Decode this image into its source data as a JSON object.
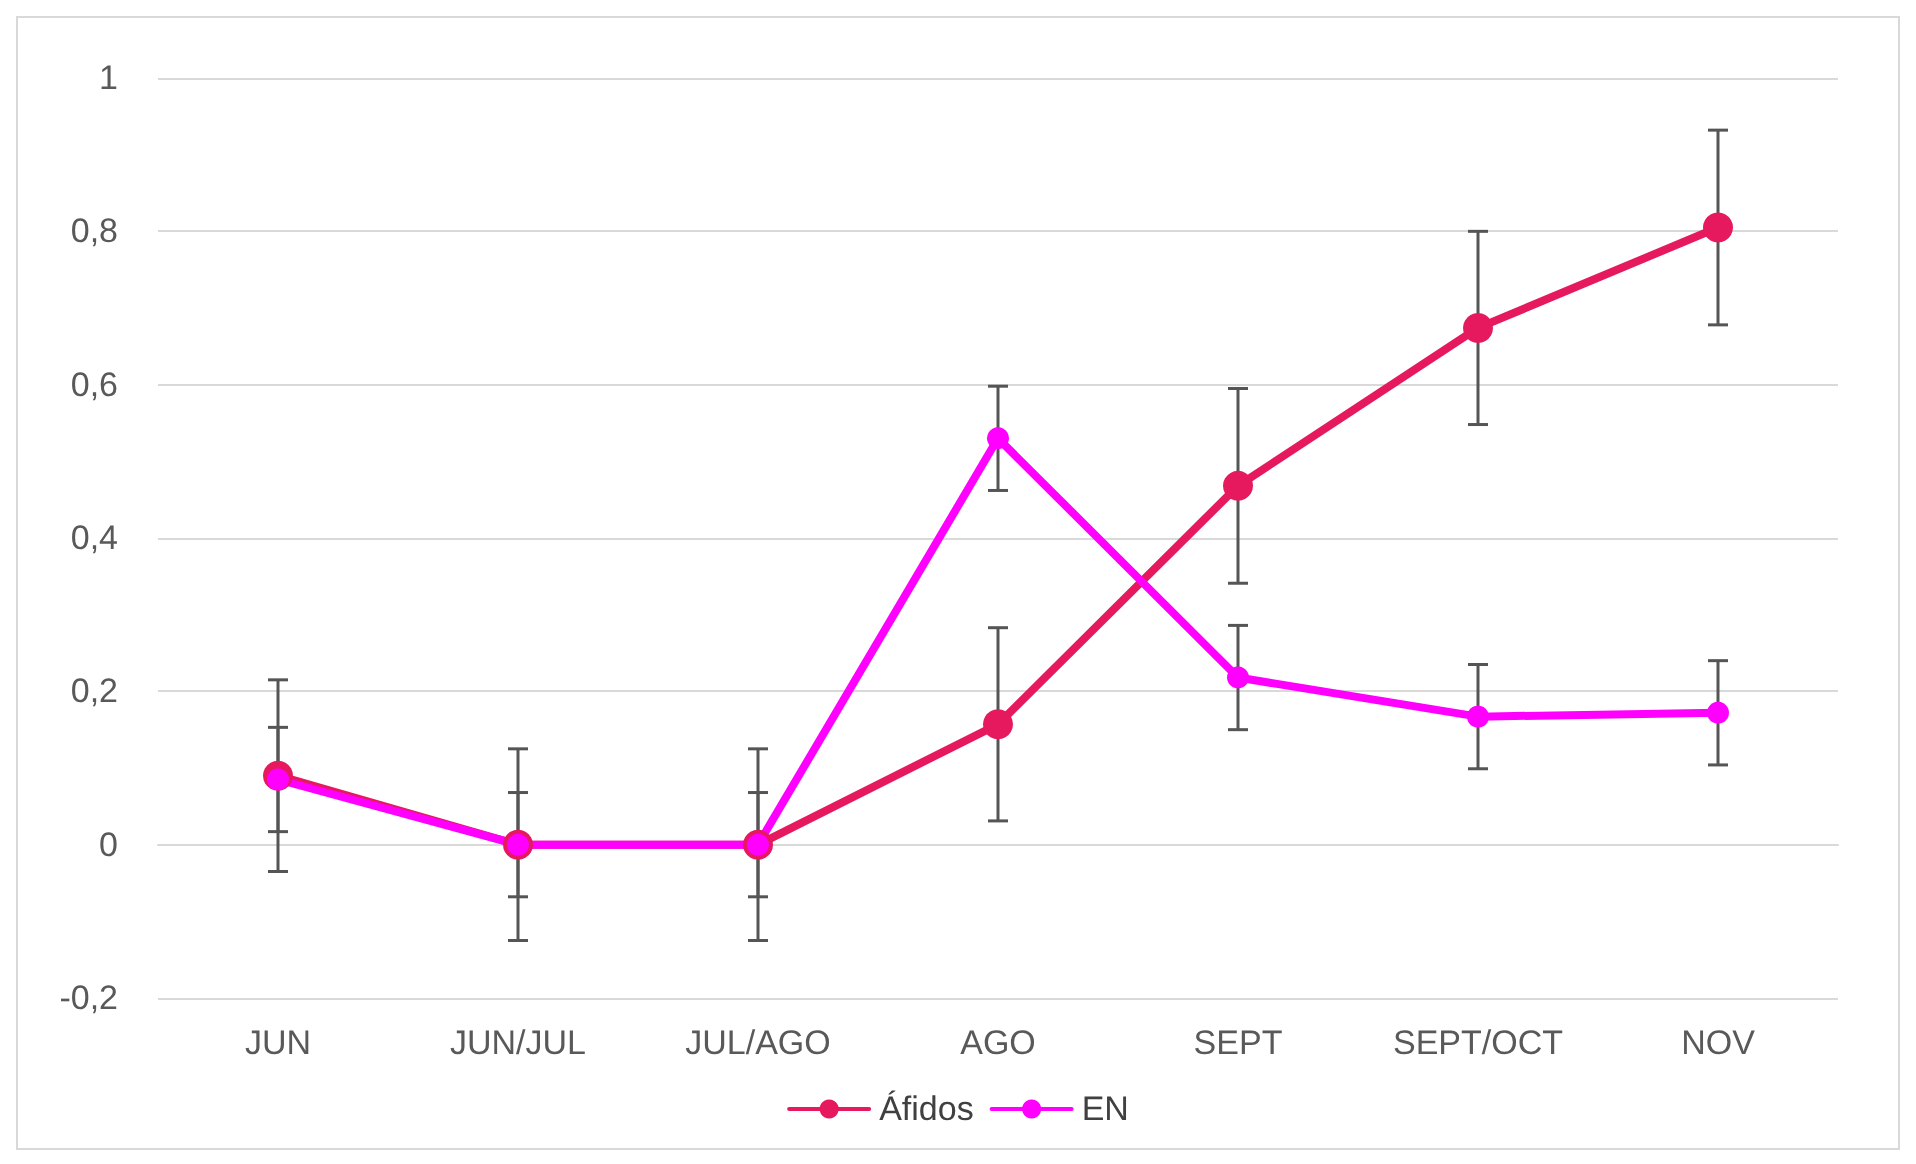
{
  "chart_data": {
    "type": "line",
    "categories": [
      "JUN",
      "JUN/JUL",
      "JUL/AGO",
      "AGO",
      "SEPT",
      "SEPT/OCT",
      "NOV"
    ],
    "series": [
      {
        "name": "Áfidos",
        "color": "#e6195e",
        "values": [
          0.09,
          0,
          0,
          0.157,
          0.468,
          0.674,
          0.805
        ],
        "errors": [
          0.125,
          0.125,
          0.125,
          0.126,
          0.127,
          0.126,
          0.127
        ]
      },
      {
        "name": "EN",
        "color": "#ff00ff",
        "values": [
          0.085,
          0,
          0,
          0.53,
          0.218,
          0.167,
          0.172
        ],
        "errors": [
          0.068,
          0.068,
          0.068,
          0.068,
          0.068,
          0.068,
          0.068
        ]
      }
    ],
    "ylim": [
      -0.2,
      1
    ],
    "yticks": [
      {
        "value": -0.2,
        "label": "-0,2"
      },
      {
        "value": 0,
        "label": "0"
      },
      {
        "value": 0.2,
        "label": "0,2"
      },
      {
        "value": 0.4,
        "label": "0,4"
      },
      {
        "value": 0.6,
        "label": "0,6"
      },
      {
        "value": 0.8,
        "label": "0,8"
      },
      {
        "value": 1,
        "label": "1"
      }
    ],
    "grid": "y",
    "legend": "bottom",
    "marker": "circle",
    "line_style": "solid"
  }
}
